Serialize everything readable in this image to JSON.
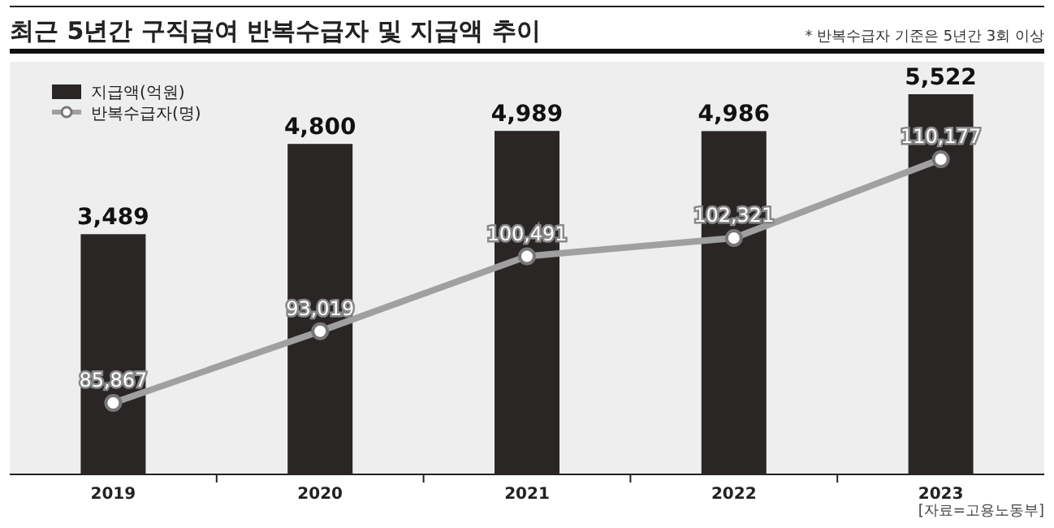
{
  "chart_data": {
    "type": "bar",
    "title": "최근 5년간 구직급여 반복수급자 및 지급액 추이",
    "categories": [
      "2019",
      "2020",
      "2021",
      "2022",
      "2023"
    ],
    "series": [
      {
        "name": "지급액(억원)",
        "color": "#2b2626",
        "values": [
          3489,
          4800,
          4989,
          4986,
          5522
        ],
        "value_labels": [
          "3,489",
          "4,800",
          "4,989",
          "4,986",
          "5,522"
        ]
      },
      {
        "name": "반복수급자(명)",
        "type": "line",
        "axis": "y2",
        "color": "#a0a0a0",
        "marker": "circle",
        "values": [
          85867,
          93019,
          100491,
          102321,
          110177
        ],
        "value_labels": [
          "85,867",
          "93,019",
          "100,491",
          "102,321",
          "110,177"
        ]
      }
    ],
    "legend": "top left",
    "annotations": [
      "* 반복수급자 기준은 5년간 3회 이상",
      "[자료=고용노동부]"
    ]
  }
}
